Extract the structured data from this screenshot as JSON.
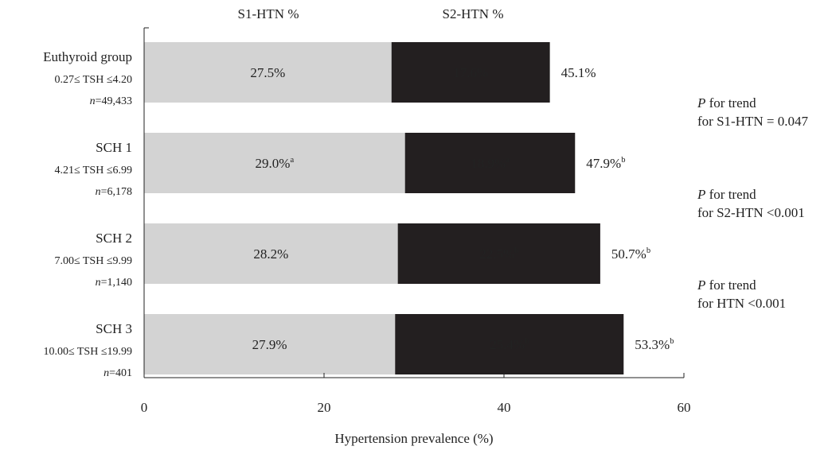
{
  "chart_data": {
    "type": "bar",
    "orientation": "horizontal",
    "stacked": true,
    "categories": [
      "Euthyroid group",
      "SCH 1",
      "SCH 2",
      "SCH 3"
    ],
    "category_details": [
      {
        "range": "0.27≤ TSH ≤4.20",
        "n": "49,433"
      },
      {
        "range": "4.21≤ TSH ≤6.99",
        "n": "6,178"
      },
      {
        "range": "7.00≤ TSH ≤9.99",
        "n": "1,140"
      },
      {
        "range": "10.00≤ TSH ≤19.99",
        "n": "401"
      }
    ],
    "series": [
      {
        "name": "S1-HTN %",
        "color": "#d3d3d3",
        "text_color": "#333333",
        "values": [
          27.5,
          29.0,
          28.2,
          27.9
        ],
        "superscripts": [
          "",
          "a",
          "",
          ""
        ]
      },
      {
        "name": "S2-HTN %",
        "color": "#231f20",
        "text_color": "#ffffff",
        "values": [
          17.6,
          18.9,
          22.5,
          25.4
        ],
        "superscripts": [
          "",
          "a",
          "b",
          "b"
        ]
      }
    ],
    "totals": [
      45.1,
      47.9,
      50.7,
      53.3
    ],
    "total_superscripts": [
      "",
      "b",
      "b",
      "b"
    ],
    "xlabel": "Hypertension prevalence (%)",
    "xlim": [
      0,
      60
    ],
    "xticks": [
      0,
      20,
      40,
      60
    ],
    "legend_position": "top",
    "grid": false,
    "n_prefix": "n",
    "n_equals": "="
  },
  "annotations": {
    "p_trend": [
      {
        "p": "P",
        "text": " for trend",
        "line2": "for S1-HTN = 0.047"
      },
      {
        "p": "P",
        "text": " for trend",
        "line2": "for S2-HTN <0.001"
      },
      {
        "p": "P",
        "text": " for trend",
        "line2": "for HTN <0.001"
      }
    ]
  }
}
